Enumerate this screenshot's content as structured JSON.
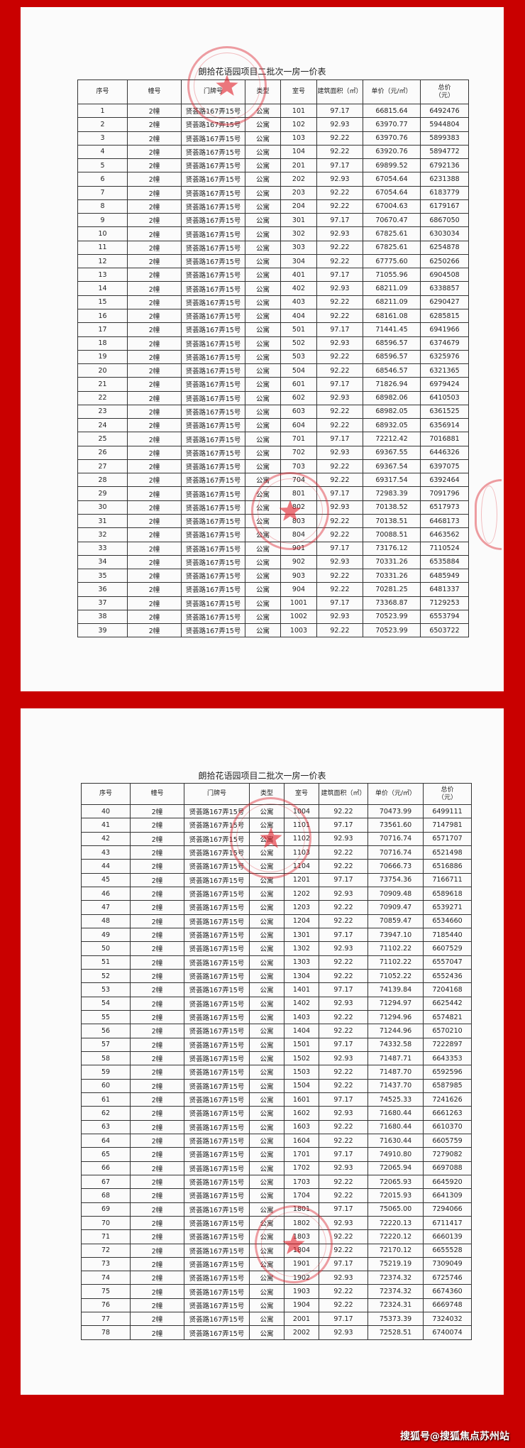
{
  "colors": {
    "background": "#c90000",
    "paper": "#fbfbfb",
    "stamp": "#dc2832"
  },
  "watermark": "搜狐号@搜狐焦点苏州站",
  "pages": [
    {
      "title": "朗拾花语园项目二批次一房一价表",
      "headers": [
        "序号",
        "幢号",
        "门牌号",
        "类型",
        "室号",
        "建筑面积（㎡）",
        "单价（元/㎡）",
        "总价\n（元）"
      ],
      "rows": [
        [
          "1",
          "2幢",
          "贤荟路167弄15号",
          "公寓",
          "101",
          "97.17",
          "66815.64",
          "6492476"
        ],
        [
          "2",
          "2幢",
          "贤荟路167弄15号",
          "公寓",
          "102",
          "92.93",
          "63970.77",
          "5944804"
        ],
        [
          "3",
          "2幢",
          "贤荟路167弄15号",
          "公寓",
          "103",
          "92.22",
          "63970.76",
          "5899383"
        ],
        [
          "4",
          "2幢",
          "贤荟路167弄15号",
          "公寓",
          "104",
          "92.22",
          "63920.76",
          "5894772"
        ],
        [
          "5",
          "2幢",
          "贤荟路167弄15号",
          "公寓",
          "201",
          "97.17",
          "69899.52",
          "6792136"
        ],
        [
          "6",
          "2幢",
          "贤荟路167弄15号",
          "公寓",
          "202",
          "92.93",
          "67054.64",
          "6231388"
        ],
        [
          "7",
          "2幢",
          "贤荟路167弄15号",
          "公寓",
          "203",
          "92.22",
          "67054.64",
          "6183779"
        ],
        [
          "8",
          "2幢",
          "贤荟路167弄15号",
          "公寓",
          "204",
          "92.22",
          "67004.63",
          "6179167"
        ],
        [
          "9",
          "2幢",
          "贤荟路167弄15号",
          "公寓",
          "301",
          "97.17",
          "70670.47",
          "6867050"
        ],
        [
          "10",
          "2幢",
          "贤荟路167弄15号",
          "公寓",
          "302",
          "92.93",
          "67825.61",
          "6303034"
        ],
        [
          "11",
          "2幢",
          "贤荟路167弄15号",
          "公寓",
          "303",
          "92.22",
          "67825.61",
          "6254878"
        ],
        [
          "12",
          "2幢",
          "贤荟路167弄15号",
          "公寓",
          "304",
          "92.22",
          "67775.60",
          "6250266"
        ],
        [
          "13",
          "2幢",
          "贤荟路167弄15号",
          "公寓",
          "401",
          "97.17",
          "71055.96",
          "6904508"
        ],
        [
          "14",
          "2幢",
          "贤荟路167弄15号",
          "公寓",
          "402",
          "92.93",
          "68211.09",
          "6338857"
        ],
        [
          "15",
          "2幢",
          "贤荟路167弄15号",
          "公寓",
          "403",
          "92.22",
          "68211.09",
          "6290427"
        ],
        [
          "16",
          "2幢",
          "贤荟路167弄15号",
          "公寓",
          "404",
          "92.22",
          "68161.08",
          "6285815"
        ],
        [
          "17",
          "2幢",
          "贤荟路167弄15号",
          "公寓",
          "501",
          "97.17",
          "71441.45",
          "6941966"
        ],
        [
          "18",
          "2幢",
          "贤荟路167弄15号",
          "公寓",
          "502",
          "92.93",
          "68596.57",
          "6374679"
        ],
        [
          "19",
          "2幢",
          "贤荟路167弄15号",
          "公寓",
          "503",
          "92.22",
          "68596.57",
          "6325976"
        ],
        [
          "20",
          "2幢",
          "贤荟路167弄15号",
          "公寓",
          "504",
          "92.22",
          "68546.57",
          "6321365"
        ],
        [
          "21",
          "2幢",
          "贤荟路167弄15号",
          "公寓",
          "601",
          "97.17",
          "71826.94",
          "6979424"
        ],
        [
          "22",
          "2幢",
          "贤荟路167弄15号",
          "公寓",
          "602",
          "92.93",
          "68982.06",
          "6410503"
        ],
        [
          "23",
          "2幢",
          "贤荟路167弄15号",
          "公寓",
          "603",
          "92.22",
          "68982.05",
          "6361525"
        ],
        [
          "24",
          "2幢",
          "贤荟路167弄15号",
          "公寓",
          "604",
          "92.22",
          "68932.05",
          "6356914"
        ],
        [
          "25",
          "2幢",
          "贤荟路167弄15号",
          "公寓",
          "701",
          "97.17",
          "72212.42",
          "7016881"
        ],
        [
          "26",
          "2幢",
          "贤荟路167弄15号",
          "公寓",
          "702",
          "92.93",
          "69367.55",
          "6446326"
        ],
        [
          "27",
          "2幢",
          "贤荟路167弄15号",
          "公寓",
          "703",
          "92.22",
          "69367.54",
          "6397075"
        ],
        [
          "28",
          "2幢",
          "贤荟路167弄15号",
          "公寓",
          "704",
          "92.22",
          "69317.54",
          "6392464"
        ],
        [
          "29",
          "2幢",
          "贤荟路167弄15号",
          "公寓",
          "801",
          "97.17",
          "72983.39",
          "7091796"
        ],
        [
          "30",
          "2幢",
          "贤荟路167弄15号",
          "公寓",
          "802",
          "92.93",
          "70138.52",
          "6517973"
        ],
        [
          "31",
          "2幢",
          "贤荟路167弄15号",
          "公寓",
          "803",
          "92.22",
          "70138.51",
          "6468173"
        ],
        [
          "32",
          "2幢",
          "贤荟路167弄15号",
          "公寓",
          "804",
          "92.22",
          "70088.51",
          "6463562"
        ],
        [
          "33",
          "2幢",
          "贤荟路167弄15号",
          "公寓",
          "901",
          "97.17",
          "73176.12",
          "7110524"
        ],
        [
          "34",
          "2幢",
          "贤荟路167弄15号",
          "公寓",
          "902",
          "92.93",
          "70331.26",
          "6535884"
        ],
        [
          "35",
          "2幢",
          "贤荟路167弄15号",
          "公寓",
          "903",
          "92.22",
          "70331.26",
          "6485949"
        ],
        [
          "36",
          "2幢",
          "贤荟路167弄15号",
          "公寓",
          "904",
          "92.22",
          "70281.25",
          "6481337"
        ],
        [
          "37",
          "2幢",
          "贤荟路167弄15号",
          "公寓",
          "1001",
          "97.17",
          "73368.87",
          "7129253"
        ],
        [
          "38",
          "2幢",
          "贤荟路167弄15号",
          "公寓",
          "1002",
          "92.93",
          "70523.99",
          "6553794"
        ],
        [
          "39",
          "2幢",
          "贤荟路167弄15号",
          "公寓",
          "1003",
          "92.22",
          "70523.99",
          "6503722"
        ]
      ]
    },
    {
      "title": "朗拾花语园项目二批次一房一价表",
      "headers": [
        "序号",
        "幢号",
        "门牌号",
        "类型",
        "室号",
        "建筑面积（㎡）",
        "单价（元/㎡）",
        "总价\n（元）"
      ],
      "rows": [
        [
          "40",
          "2幢",
          "贤荟路167弄15号",
          "公寓",
          "1004",
          "92.22",
          "70473.99",
          "6499111"
        ],
        [
          "41",
          "2幢",
          "贤荟路167弄15号",
          "公寓",
          "1101",
          "97.17",
          "73561.60",
          "7147981"
        ],
        [
          "42",
          "2幢",
          "贤荟路167弄15号",
          "公寓",
          "1102",
          "92.93",
          "70716.74",
          "6571707"
        ],
        [
          "43",
          "2幢",
          "贤荟路167弄15号",
          "公寓",
          "1103",
          "92.22",
          "70716.74",
          "6521498"
        ],
        [
          "44",
          "2幢",
          "贤荟路167弄15号",
          "公寓",
          "1104",
          "92.22",
          "70666.73",
          "6516886"
        ],
        [
          "45",
          "2幢",
          "贤荟路167弄15号",
          "公寓",
          "1201",
          "97.17",
          "73754.36",
          "7166711"
        ],
        [
          "46",
          "2幢",
          "贤荟路167弄15号",
          "公寓",
          "1202",
          "92.93",
          "70909.48",
          "6589618"
        ],
        [
          "47",
          "2幢",
          "贤荟路167弄15号",
          "公寓",
          "1203",
          "92.22",
          "70909.47",
          "6539271"
        ],
        [
          "48",
          "2幢",
          "贤荟路167弄15号",
          "公寓",
          "1204",
          "92.22",
          "70859.47",
          "6534660"
        ],
        [
          "49",
          "2幢",
          "贤荟路167弄15号",
          "公寓",
          "1301",
          "97.17",
          "73947.10",
          "7185440"
        ],
        [
          "50",
          "2幢",
          "贤荟路167弄15号",
          "公寓",
          "1302",
          "92.93",
          "71102.22",
          "6607529"
        ],
        [
          "51",
          "2幢",
          "贤荟路167弄15号",
          "公寓",
          "1303",
          "92.22",
          "71102.22",
          "6557047"
        ],
        [
          "52",
          "2幢",
          "贤荟路167弄15号",
          "公寓",
          "1304",
          "92.22",
          "71052.22",
          "6552436"
        ],
        [
          "53",
          "2幢",
          "贤荟路167弄15号",
          "公寓",
          "1401",
          "97.17",
          "74139.84",
          "7204168"
        ],
        [
          "54",
          "2幢",
          "贤荟路167弄15号",
          "公寓",
          "1402",
          "92.93",
          "71294.97",
          "6625442"
        ],
        [
          "55",
          "2幢",
          "贤荟路167弄15号",
          "公寓",
          "1403",
          "92.22",
          "71294.96",
          "6574821"
        ],
        [
          "56",
          "2幢",
          "贤荟路167弄15号",
          "公寓",
          "1404",
          "92.22",
          "71244.96",
          "6570210"
        ],
        [
          "57",
          "2幢",
          "贤荟路167弄15号",
          "公寓",
          "1501",
          "97.17",
          "74332.58",
          "7222897"
        ],
        [
          "58",
          "2幢",
          "贤荟路167弄15号",
          "公寓",
          "1502",
          "92.93",
          "71487.71",
          "6643353"
        ],
        [
          "59",
          "2幢",
          "贤荟路167弄15号",
          "公寓",
          "1503",
          "92.22",
          "71487.70",
          "6592596"
        ],
        [
          "60",
          "2幢",
          "贤荟路167弄15号",
          "公寓",
          "1504",
          "92.22",
          "71437.70",
          "6587985"
        ],
        [
          "61",
          "2幢",
          "贤荟路167弄15号",
          "公寓",
          "1601",
          "97.17",
          "74525.33",
          "7241626"
        ],
        [
          "62",
          "2幢",
          "贤荟路167弄15号",
          "公寓",
          "1602",
          "92.93",
          "71680.44",
          "6661263"
        ],
        [
          "63",
          "2幢",
          "贤荟路167弄15号",
          "公寓",
          "1603",
          "92.22",
          "71680.44",
          "6610370"
        ],
        [
          "64",
          "2幢",
          "贤荟路167弄15号",
          "公寓",
          "1604",
          "92.22",
          "71630.44",
          "6605759"
        ],
        [
          "65",
          "2幢",
          "贤荟路167弄15号",
          "公寓",
          "1701",
          "97.17",
          "74910.80",
          "7279082"
        ],
        [
          "66",
          "2幢",
          "贤荟路167弄15号",
          "公寓",
          "1702",
          "92.93",
          "72065.94",
          "6697088"
        ],
        [
          "67",
          "2幢",
          "贤荟路167弄15号",
          "公寓",
          "1703",
          "92.22",
          "72065.93",
          "6645920"
        ],
        [
          "68",
          "2幢",
          "贤荟路167弄15号",
          "公寓",
          "1704",
          "92.22",
          "72015.93",
          "6641309"
        ],
        [
          "69",
          "2幢",
          "贤荟路167弄15号",
          "公寓",
          "1801",
          "97.17",
          "75065.00",
          "7294066"
        ],
        [
          "70",
          "2幢",
          "贤荟路167弄15号",
          "公寓",
          "1802",
          "92.93",
          "72220.13",
          "6711417"
        ],
        [
          "71",
          "2幢",
          "贤荟路167弄15号",
          "公寓",
          "1803",
          "92.22",
          "72220.12",
          "6660139"
        ],
        [
          "72",
          "2幢",
          "贤荟路167弄15号",
          "公寓",
          "1804",
          "92.22",
          "72170.12",
          "6655528"
        ],
        [
          "73",
          "2幢",
          "贤荟路167弄15号",
          "公寓",
          "1901",
          "97.17",
          "75219.19",
          "7309049"
        ],
        [
          "74",
          "2幢",
          "贤荟路167弄15号",
          "公寓",
          "1902",
          "92.93",
          "72374.32",
          "6725746"
        ],
        [
          "75",
          "2幢",
          "贤荟路167弄15号",
          "公寓",
          "1903",
          "92.22",
          "72374.32",
          "6674360"
        ],
        [
          "76",
          "2幢",
          "贤荟路167弄15号",
          "公寓",
          "1904",
          "92.22",
          "72324.31",
          "6669748"
        ],
        [
          "77",
          "2幢",
          "贤荟路167弄15号",
          "公寓",
          "2001",
          "97.17",
          "75373.39",
          "7324032"
        ],
        [
          "78",
          "2幢",
          "贤荟路167弄15号",
          "公寓",
          "2002",
          "92.93",
          "72528.51",
          "6740074"
        ]
      ]
    }
  ]
}
